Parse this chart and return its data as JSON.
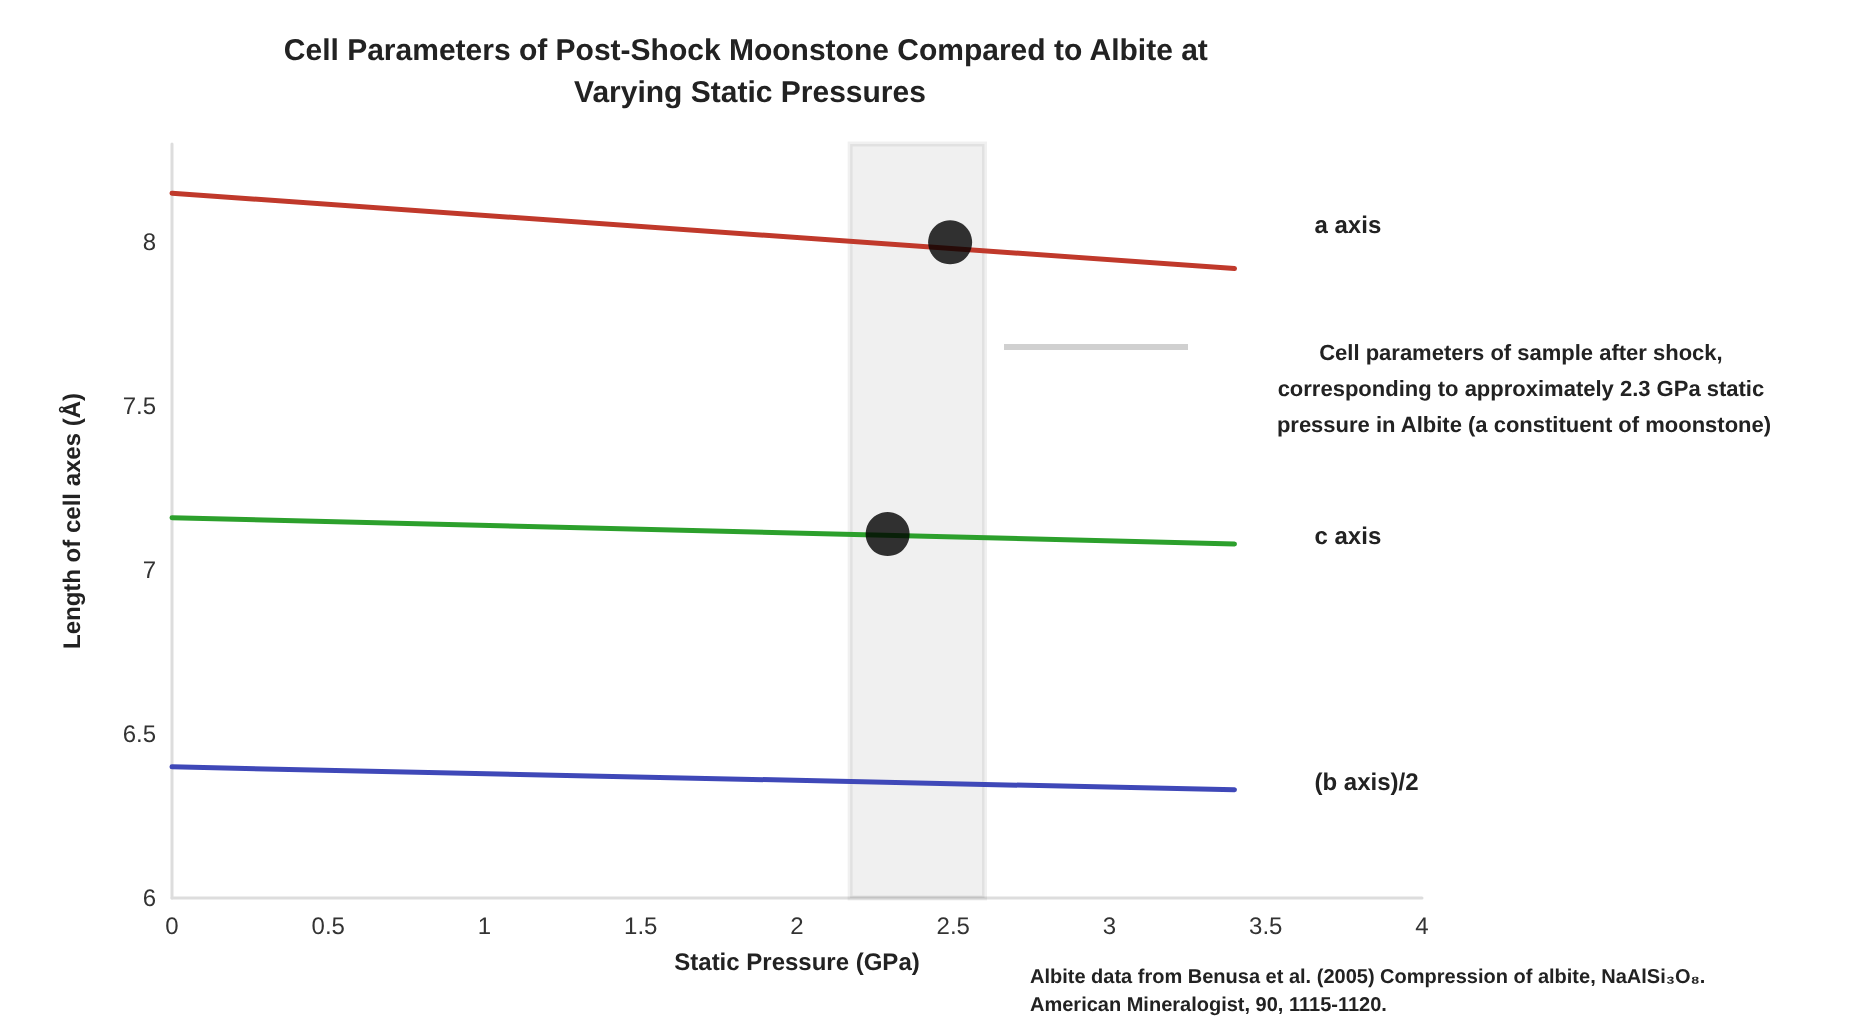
{
  "chart_data": {
    "type": "line",
    "title": "Cell Parameters of Post-Shock Moonstone Compared to Albite at Varying Static Pressures",
    "xlabel": "Static Pressure (GPa)",
    "ylabel": "Length of cell axes (Å)",
    "xlim": [
      0,
      4
    ],
    "xticks": [
      0,
      0.5,
      1,
      1.5,
      2,
      2.5,
      3,
      3.5,
      4
    ],
    "ylim": [
      6,
      8.3
    ],
    "yticks": [
      6,
      6.5,
      7,
      7.5,
      8
    ],
    "grid": false,
    "marker": "none",
    "line_style": "solid",
    "series": [
      {
        "name": "a axis",
        "color": "#c0392b",
        "x": [
          0,
          3.4
        ],
        "values": [
          8.15,
          7.92
        ]
      },
      {
        "name": "c axis",
        "color": "#2ca02c",
        "x": [
          0,
          3.4
        ],
        "values": [
          7.16,
          7.08
        ]
      },
      {
        "name": "(b axis)/2",
        "color": "#3f48b8",
        "x": [
          0,
          3.4
        ],
        "values": [
          6.4,
          6.33
        ]
      },
      {
        "type": "scatter",
        "color": "#000000",
        "marker": "circle",
        "x": [
          2.49,
          2.29
        ],
        "values": [
          8.0,
          7.11
        ]
      }
    ],
    "bands": [
      {
        "axis": "x",
        "from": 2.17,
        "to": 2.6,
        "color": "#000000"
      }
    ],
    "annotations": [
      "Cell parameters of sample after shock, corresponding to approximately 2.3 GPa static pressure in Albite (a constituent of moonstone)",
      "Albite data from Benusa et al. (2005) Compression of albite, NaAlSi₃O₈. American Mineralogist, 90, 1115-1120."
    ]
  }
}
